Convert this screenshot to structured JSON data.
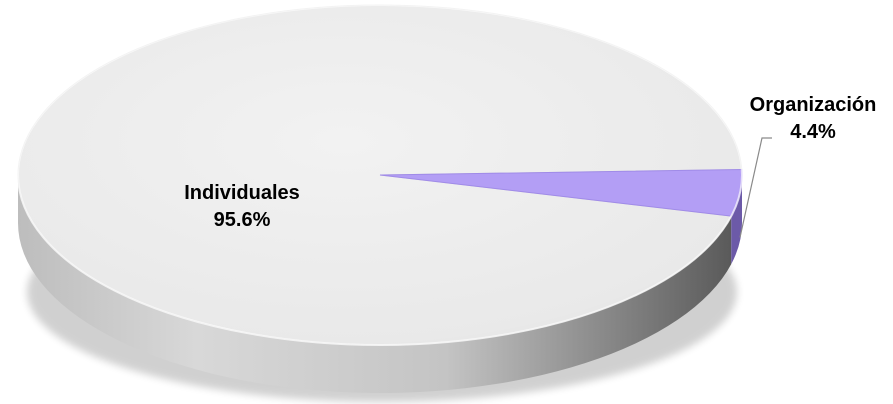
{
  "chart_data": {
    "type": "pie",
    "style": "3d",
    "categories": [
      "Individuales",
      "Organización"
    ],
    "values": [
      95.6,
      4.4
    ],
    "value_labels": [
      "95.6%",
      "4.4%"
    ],
    "colors": [
      "#eeeeee",
      "#b39ef5"
    ],
    "title": "",
    "legend": "none",
    "grid": false
  }
}
